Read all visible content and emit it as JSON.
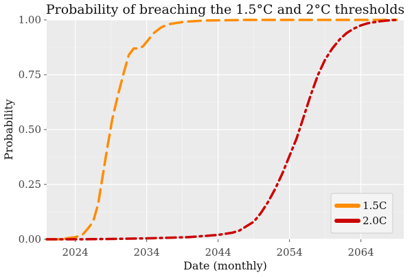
{
  "chart_data": {
    "type": "line",
    "title": "Probability of breaching the 1.5°C and 2°C thresholds",
    "xlabel": "Date (monthly)",
    "ylabel": "Probability",
    "xlim": [
      2020,
      2070
    ],
    "ylim": [
      0,
      1
    ],
    "x_ticks": [
      2024,
      2034,
      2044,
      2054,
      2064
    ],
    "x_tick_labels": [
      "2024",
      "2034",
      "2044",
      "2054",
      "2064"
    ],
    "y_ticks": [
      0,
      0.25,
      0.5,
      0.75,
      1
    ],
    "y_tick_labels": [
      "0.00",
      "0.25",
      "0.50",
      "0.75",
      "1.00"
    ],
    "grid": true,
    "legend_position": "bottom-right",
    "series": [
      {
        "name": "1.5C",
        "color": "#FF8C00",
        "dash": "dashed",
        "x": [
          2020,
          2022,
          2023,
          2024,
          2025,
          2025.8,
          2026.5,
          2027.2,
          2027.8,
          2028.5,
          2029.2,
          2030,
          2030.8,
          2031.5,
          2032.2,
          2033,
          2033.5,
          2034,
          2035,
          2036,
          2037,
          2038,
          2039,
          2040,
          2041,
          2042,
          2044,
          2046,
          2048,
          2050,
          2055,
          2060,
          2065,
          2069
        ],
        "y": [
          0,
          0,
          0.005,
          0.01,
          0.02,
          0.05,
          0.08,
          0.16,
          0.28,
          0.42,
          0.55,
          0.66,
          0.76,
          0.84,
          0.87,
          0.87,
          0.88,
          0.9,
          0.94,
          0.965,
          0.98,
          0.985,
          0.99,
          0.993,
          0.995,
          0.997,
          0.998,
          0.999,
          1,
          1,
          1,
          1,
          1,
          1
        ]
      },
      {
        "name": "2.0C",
        "color": "#CC0000",
        "dash": "dashdot",
        "x": [
          2020,
          2025,
          2030,
          2035,
          2040,
          2042,
          2044,
          2046,
          2047,
          2048,
          2049,
          2050,
          2051,
          2052,
          2053,
          2054,
          2055,
          2056,
          2057,
          2058,
          2059,
          2060,
          2061,
          2062,
          2063,
          2064,
          2065,
          2066,
          2067,
          2068,
          2069
        ],
        "y": [
          0,
          0,
          0.002,
          0.005,
          0.01,
          0.015,
          0.02,
          0.03,
          0.04,
          0.06,
          0.08,
          0.12,
          0.17,
          0.23,
          0.3,
          0.38,
          0.46,
          0.56,
          0.66,
          0.75,
          0.82,
          0.87,
          0.91,
          0.94,
          0.96,
          0.975,
          0.985,
          0.99,
          0.995,
          0.998,
          1
        ]
      }
    ]
  }
}
